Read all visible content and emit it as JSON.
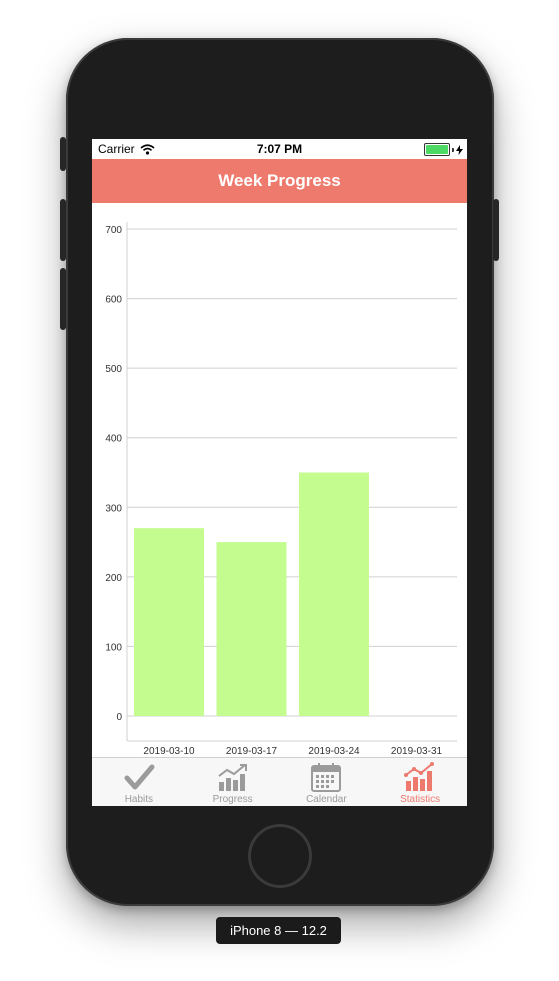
{
  "status_bar": {
    "carrier": "Carrier",
    "time": "7:07 PM",
    "battery_color": "#4cd964"
  },
  "nav": {
    "title": "Week Progress",
    "color": "#ee7a6e"
  },
  "chart_data": {
    "type": "bar",
    "categories": [
      "2019-03-10",
      "2019-03-17",
      "2019-03-24",
      "2019-03-31"
    ],
    "values": [
      270,
      250,
      350,
      0
    ],
    "yticks": [
      0,
      100,
      200,
      300,
      400,
      500,
      600,
      700
    ],
    "ylim": [
      0,
      700
    ],
    "bar_color": "#c4fc90",
    "grid": true
  },
  "tab_bar": {
    "items": [
      {
        "label": "Habits",
        "icon": "checkmark-icon",
        "active": false
      },
      {
        "label": "Progress",
        "icon": "progress-chart-icon",
        "active": false
      },
      {
        "label": "Calendar",
        "icon": "calendar-icon",
        "active": false
      },
      {
        "label": "Statistics",
        "icon": "statistics-chart-icon",
        "active": true
      }
    ],
    "active_color": "#ee7a6e",
    "inactive_color": "#9b9b9b"
  },
  "device": {
    "label": "iPhone 8 — 12.2"
  }
}
